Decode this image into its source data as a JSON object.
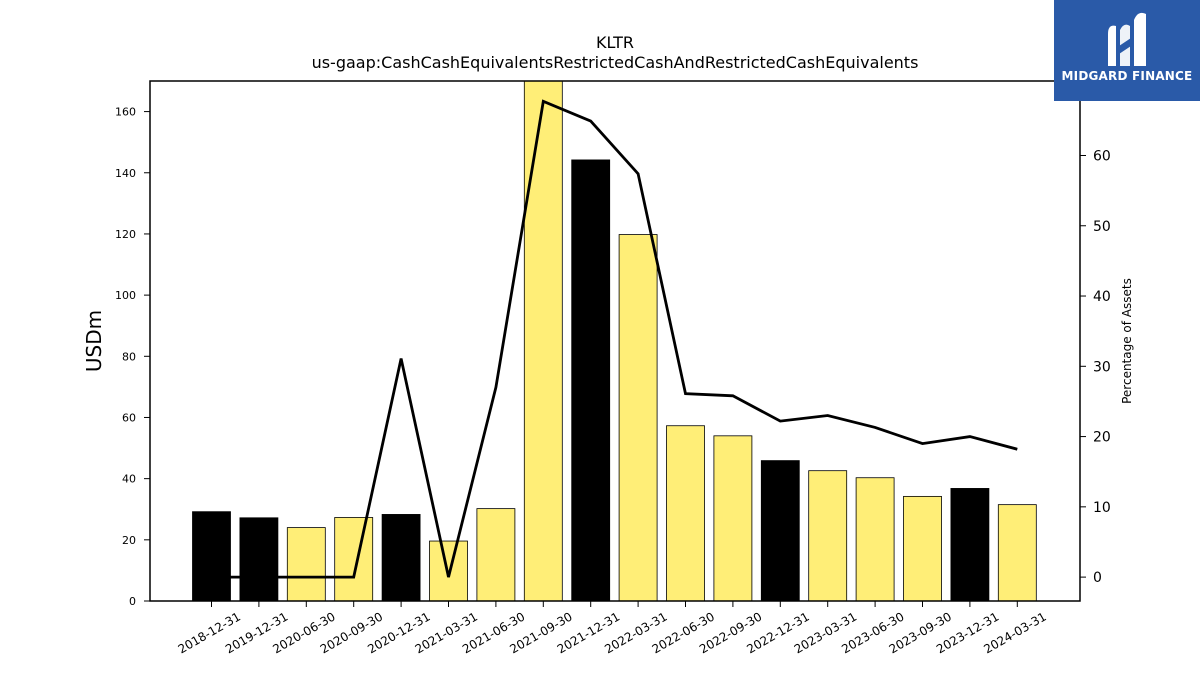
{
  "chart_data": {
    "type": "bar",
    "title": "KLTR",
    "subtitle": "us-gaap:CashCashEquivalentsRestrictedCashAndRestrictedCashEquivalents",
    "ylabel": "USDm",
    "y2label": "Percentage of Assets",
    "ylim": [
      0,
      170
    ],
    "y2lim": [
      -3.4,
      70.6
    ],
    "yticks": [
      0,
      20,
      40,
      60,
      80,
      100,
      120,
      140,
      160
    ],
    "y2ticks": [
      0,
      10,
      20,
      30,
      40,
      50,
      60
    ],
    "categories": [
      "2018-12-31",
      "2019-12-31",
      "2020-06-30",
      "2020-09-30",
      "2020-12-31",
      "2021-03-31",
      "2021-06-30",
      "2021-09-30",
      "2021-12-31",
      "2022-03-31",
      "2022-06-30",
      "2022-09-30",
      "2022-12-31",
      "2023-03-31",
      "2023-06-30",
      "2023-09-30",
      "2023-12-31",
      "2024-03-31"
    ],
    "series": [
      {
        "kind": "bar",
        "axis": "left",
        "values": [
          29.2,
          27.2,
          24.0,
          27.3,
          28.3,
          19.6,
          30.2,
          173.0,
          144.2,
          119.8,
          57.3,
          54.0,
          45.9,
          42.6,
          40.3,
          34.2,
          36.8,
          31.5
        ],
        "colors": [
          "#000000",
          "#000000",
          "#ffee77",
          "#ffee77",
          "#000000",
          "#ffee77",
          "#ffee77",
          "#ffee77",
          "#000000",
          "#ffee77",
          "#ffee77",
          "#ffee77",
          "#000000",
          "#ffee77",
          "#ffee77",
          "#ffee77",
          "#000000",
          "#ffee77"
        ]
      },
      {
        "kind": "line",
        "axis": "right",
        "color": "#000000",
        "values": [
          0.0,
          0.0,
          0.0,
          0.0,
          31.1,
          0.0,
          27.0,
          67.7,
          64.9,
          57.4,
          26.1,
          25.8,
          22.2,
          23.0,
          21.3,
          19.0,
          20.0,
          18.2
        ]
      }
    ]
  },
  "logo": {
    "text": "MIDGARD FINANCE",
    "color": "#2a5aa8"
  }
}
